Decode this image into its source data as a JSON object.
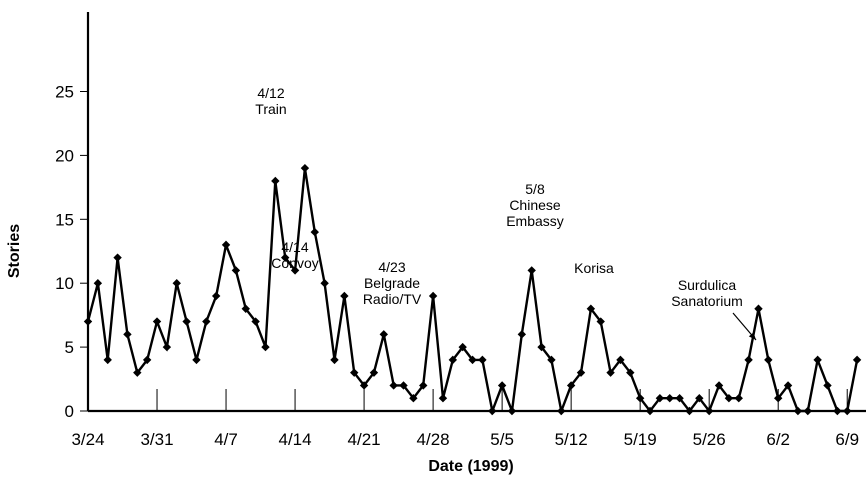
{
  "chart_data": {
    "type": "line",
    "xlabel": "Date (1999)",
    "ylabel": "Stories",
    "ylim": [
      0,
      25
    ],
    "yticks": [
      0,
      5,
      10,
      15,
      20,
      25
    ],
    "grid": false,
    "x_tick_labels": [
      "3/24",
      "3/31",
      "4/7",
      "4/14",
      "4/21",
      "4/28",
      "5/5",
      "5/12",
      "5/19",
      "5/26",
      "6/2",
      "6/9"
    ],
    "x_start": "3/24",
    "series": [
      {
        "values": [
          7,
          10,
          4,
          12,
          6,
          3,
          4,
          7,
          5,
          10,
          7,
          4,
          7,
          9,
          13,
          11,
          8,
          7,
          5,
          18,
          12,
          11,
          19,
          14,
          10,
          4,
          9,
          3,
          2,
          3,
          6,
          2,
          2,
          1,
          2,
          9,
          1,
          4,
          5,
          4,
          4,
          0,
          2,
          0,
          6,
          11,
          5,
          4,
          0,
          2,
          3,
          8,
          7,
          3,
          4,
          3,
          1,
          0,
          1,
          1,
          1,
          0,
          1,
          0,
          2,
          1,
          1,
          4,
          8,
          4,
          1,
          2,
          0,
          0,
          4,
          2,
          0,
          0,
          4
        ]
      }
    ],
    "annotations": [
      {
        "lines": [
          "4/12",
          "Train"
        ]
      },
      {
        "lines": [
          "4/14",
          "Convoy"
        ]
      },
      {
        "lines": [
          "4/23",
          "Belgrade",
          "Radio/TV"
        ]
      },
      {
        "lines": [
          "5/8",
          "Chinese",
          "Embassy"
        ]
      },
      {
        "lines": [
          "Korisa"
        ]
      },
      {
        "lines": [
          "Surdulica",
          "Sanatorium"
        ]
      }
    ]
  }
}
